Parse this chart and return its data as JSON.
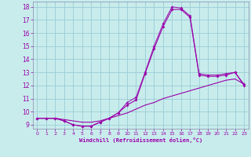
{
  "xlabel": "Windchill (Refroidissement éolien,°C)",
  "background_color": "#c8ecec",
  "grid_color": "#a0d0d8",
  "line_color": "#9900aa",
  "spine_color": "#8888aa",
  "hours": [
    0,
    1,
    2,
    3,
    4,
    5,
    6,
    7,
    8,
    9,
    10,
    11,
    12,
    13,
    14,
    15,
    16,
    17,
    18,
    19,
    20,
    21,
    22,
    23
  ],
  "windchill1": [
    9.5,
    9.5,
    9.5,
    9.3,
    9.0,
    8.9,
    8.9,
    9.2,
    9.5,
    9.9,
    10.5,
    10.9,
    12.9,
    14.8,
    16.5,
    17.8,
    17.8,
    17.2,
    12.8,
    12.7,
    12.7,
    12.8,
    13.0,
    12.0
  ],
  "windchill2": [
    9.5,
    9.5,
    9.5,
    9.3,
    9.0,
    8.9,
    8.9,
    9.2,
    9.5,
    9.9,
    10.7,
    11.1,
    13.0,
    15.0,
    16.7,
    18.0,
    17.9,
    17.3,
    12.9,
    12.8,
    12.8,
    12.9,
    13.0,
    12.1
  ],
  "temp": [
    9.5,
    9.5,
    9.5,
    9.4,
    9.3,
    9.2,
    9.2,
    9.3,
    9.5,
    9.7,
    9.9,
    10.2,
    10.5,
    10.7,
    11.0,
    11.2,
    11.4,
    11.6,
    11.8,
    12.0,
    12.2,
    12.4,
    12.5,
    12.1
  ],
  "ylim": [
    8.7,
    18.4
  ],
  "xlim": [
    -0.5,
    23.5
  ],
  "yticks": [
    9,
    10,
    11,
    12,
    13,
    14,
    15,
    16,
    17,
    18
  ],
  "xticks": [
    0,
    1,
    2,
    3,
    4,
    5,
    6,
    7,
    8,
    9,
    10,
    11,
    12,
    13,
    14,
    15,
    16,
    17,
    18,
    19,
    20,
    21,
    22,
    23
  ]
}
